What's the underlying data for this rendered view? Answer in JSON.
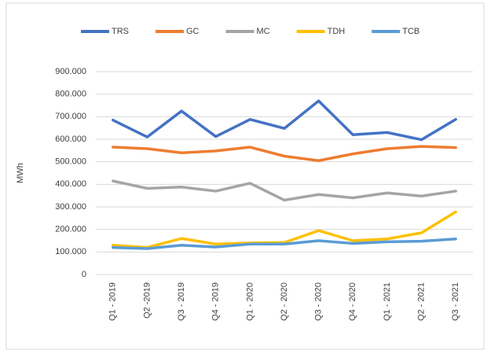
{
  "chart_data": {
    "type": "line",
    "y_label": "MWh",
    "categories": [
      "Q1 - 2019",
      "Q2 -2019",
      "Q3 - 2019",
      "Q4 - 2019",
      "Q1 - 2020",
      "Q2 - 2020",
      "Q3 - 2020",
      "Q4 - 2020",
      "Q1 - 2021",
      "Q2 - 2021",
      "Q3 - 2021"
    ],
    "series": [
      {
        "name": "TRS",
        "color": "#4472c4",
        "values": [
          685000,
          610000,
          725000,
          612000,
          688000,
          648000,
          770000,
          620000,
          630000,
          598000,
          688000
        ]
      },
      {
        "name": "GC",
        "color": "#ed7d31",
        "values": [
          565000,
          558000,
          540000,
          548000,
          565000,
          525000,
          505000,
          535000,
          558000,
          568000,
          563000
        ]
      },
      {
        "name": "MC",
        "color": "#a5a5a5",
        "values": [
          415000,
          382000,
          388000,
          370000,
          405000,
          330000,
          355000,
          340000,
          362000,
          348000,
          370000
        ]
      },
      {
        "name": "TDH",
        "color": "#ffc000",
        "values": [
          130000,
          120000,
          160000,
          135000,
          140000,
          142000,
          195000,
          150000,
          158000,
          185000,
          278000
        ]
      },
      {
        "name": "TCB",
        "color": "#5b9bd5",
        "values": [
          120000,
          115000,
          130000,
          122000,
          135000,
          135000,
          150000,
          138000,
          145000,
          148000,
          158000
        ]
      }
    ],
    "ylim": [
      0,
      900000
    ],
    "yticks": [
      0,
      {
        "value": 100000,
        "label": "100.000"
      },
      {
        "value": 200000,
        "label": "200.000"
      },
      {
        "value": 300000,
        "label": "300.000"
      },
      {
        "value": 400000,
        "label": "400.000"
      },
      {
        "value": 500000,
        "label": "500.000"
      },
      {
        "value": 600000,
        "label": "600.000"
      },
      {
        "value": 700000,
        "label": "700.000"
      },
      {
        "value": 800000,
        "label": "800.000"
      },
      {
        "value": 900000,
        "label": "900.000"
      }
    ],
    "grid": true,
    "legend": "top"
  }
}
